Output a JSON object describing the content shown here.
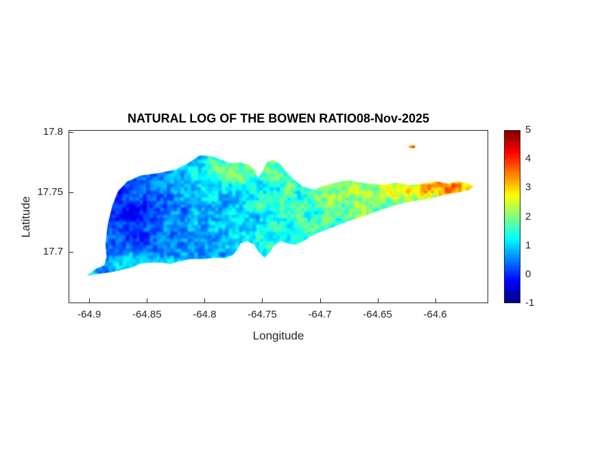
{
  "chart_data": {
    "type": "heatmap",
    "title": "NATURAL LOG OF THE BOWEN RATIO08-Nov-2025",
    "xlabel": "Longitude",
    "ylabel": "Latitude",
    "xlim": [
      -64.918,
      -64.554
    ],
    "ylim": [
      17.657,
      17.802
    ],
    "xticks": [
      -64.9,
      -64.85,
      -64.8,
      -64.75,
      -64.7,
      -64.65,
      -64.6
    ],
    "xtick_labels": [
      "-64.9",
      "-64.85",
      "-64.8",
      "-64.75",
      "-64.7",
      "-64.65",
      "-64.6"
    ],
    "yticks": [
      17.8,
      17.75,
      17.7
    ],
    "ytick_labels": [
      "17.8",
      "17.75",
      "17.7"
    ],
    "grid": false,
    "legend": "none",
    "colorbar": {
      "position": "right",
      "min": -1,
      "max": 5,
      "ticks": [
        5,
        4,
        3,
        2,
        1,
        0,
        -1
      ],
      "tick_labels": [
        "5",
        "4",
        "3",
        "2",
        "1",
        "0",
        "-1"
      ],
      "colormap": "jet",
      "colormap_stops": [
        "#00008f",
        "#0000ff",
        "#00ffff",
        "#80ff80",
        "#ffff00",
        "#ff0000",
        "#800000"
      ]
    },
    "region_description": "Island of St. Croix rendered as ln(Bowen ratio) raster: low (blue) values on western lobe, mid (cyan-green) center, high (yellow-orange) along northern ridge and eastern peninsula",
    "island_outline_lonlat": [
      [
        -64.902,
        17.68
      ],
      [
        -64.894,
        17.686
      ],
      [
        -64.887,
        17.689
      ],
      [
        -64.885,
        17.696
      ],
      [
        -64.886,
        17.706
      ],
      [
        -64.884,
        17.723
      ],
      [
        -64.88,
        17.739
      ],
      [
        -64.875,
        17.751
      ],
      [
        -64.867,
        17.759
      ],
      [
        -64.855,
        17.764
      ],
      [
        -64.839,
        17.766
      ],
      [
        -64.825,
        17.769
      ],
      [
        -64.813,
        17.775
      ],
      [
        -64.804,
        17.781
      ],
      [
        -64.794,
        17.78
      ],
      [
        -64.785,
        17.777
      ],
      [
        -64.778,
        17.774
      ],
      [
        -64.769,
        17.775
      ],
      [
        -64.762,
        17.773
      ],
      [
        -64.756,
        17.768
      ],
      [
        -64.754,
        17.762
      ],
      [
        -64.75,
        17.767
      ],
      [
        -64.746,
        17.775
      ],
      [
        -64.74,
        17.777
      ],
      [
        -64.734,
        17.773
      ],
      [
        -64.728,
        17.766
      ],
      [
        -64.722,
        17.76
      ],
      [
        -64.715,
        17.755
      ],
      [
        -64.706,
        17.752
      ],
      [
        -64.697,
        17.755
      ],
      [
        -64.686,
        17.758
      ],
      [
        -64.676,
        17.76
      ],
      [
        -64.666,
        17.758
      ],
      [
        -64.655,
        17.757
      ],
      [
        -64.644,
        17.756
      ],
      [
        -64.634,
        17.758
      ],
      [
        -64.623,
        17.756
      ],
      [
        -64.611,
        17.757
      ],
      [
        -64.599,
        17.759
      ],
      [
        -64.589,
        17.757
      ],
      [
        -64.579,
        17.759
      ],
      [
        -64.572,
        17.757
      ],
      [
        -64.566,
        17.755
      ],
      [
        -64.57,
        17.752
      ],
      [
        -64.579,
        17.75
      ],
      [
        -64.591,
        17.748
      ],
      [
        -64.603,
        17.745
      ],
      [
        -64.615,
        17.743
      ],
      [
        -64.627,
        17.741
      ],
      [
        -64.638,
        17.738
      ],
      [
        -64.65,
        17.734
      ],
      [
        -64.662,
        17.73
      ],
      [
        -64.674,
        17.726
      ],
      [
        -64.685,
        17.722
      ],
      [
        -64.696,
        17.718
      ],
      [
        -64.706,
        17.714
      ],
      [
        -64.714,
        17.709
      ],
      [
        -64.721,
        17.706
      ],
      [
        -64.728,
        17.707
      ],
      [
        -64.734,
        17.709
      ],
      [
        -64.74,
        17.705
      ],
      [
        -64.744,
        17.699
      ],
      [
        -64.748,
        17.695
      ],
      [
        -64.753,
        17.7
      ],
      [
        -64.757,
        17.706
      ],
      [
        -64.763,
        17.709
      ],
      [
        -64.769,
        17.707
      ],
      [
        -64.772,
        17.701
      ],
      [
        -64.776,
        17.697
      ],
      [
        -64.781,
        17.695
      ],
      [
        -64.791,
        17.695
      ],
      [
        -64.801,
        17.694
      ],
      [
        -64.812,
        17.694
      ],
      [
        -64.822,
        17.692
      ],
      [
        -64.83,
        17.69
      ],
      [
        -64.838,
        17.691
      ],
      [
        -64.847,
        17.691
      ],
      [
        -64.856,
        17.69
      ],
      [
        -64.863,
        17.687
      ],
      [
        -64.872,
        17.685
      ],
      [
        -64.881,
        17.683
      ],
      [
        -64.889,
        17.682
      ],
      [
        -64.896,
        17.681
      ]
    ],
    "buck_island": {
      "lon": -64.62,
      "lat": 17.788,
      "value": 3.3
    },
    "field": {
      "west_lon": -64.905,
      "east_lon": -64.56,
      "base_west": 0.15,
      "base_east": 2.35,
      "features": [
        {
          "lon": -64.862,
          "lat": 17.733,
          "sx": 0.025,
          "sy": 0.02,
          "amp": -0.55
        },
        {
          "lon": -64.775,
          "lat": 17.77,
          "sx": 0.038,
          "sy": 0.013,
          "amp": 0.9
        },
        {
          "lon": -64.585,
          "lat": 17.755,
          "sx": 0.028,
          "sy": 0.01,
          "amp": 1.0
        },
        {
          "lon": -64.63,
          "lat": 17.753,
          "sx": 0.05,
          "sy": 0.007,
          "amp": 0.7
        },
        {
          "lon": -64.86,
          "lat": 17.69,
          "sx": 0.045,
          "sy": 0.01,
          "amp": 0.55
        },
        {
          "lon": -64.7,
          "lat": 17.745,
          "sx": 0.06,
          "sy": 0.025,
          "amp": 0.35
        },
        {
          "lon": -64.899,
          "lat": 17.681,
          "sx": 0.006,
          "sy": 0.005,
          "amp": 1.2
        }
      ],
      "noise_amp_fine": 0.55,
      "noise_amp_coarse": 0.45,
      "noise_scale_fine": 5,
      "noise_scale_coarse": 14
    }
  }
}
